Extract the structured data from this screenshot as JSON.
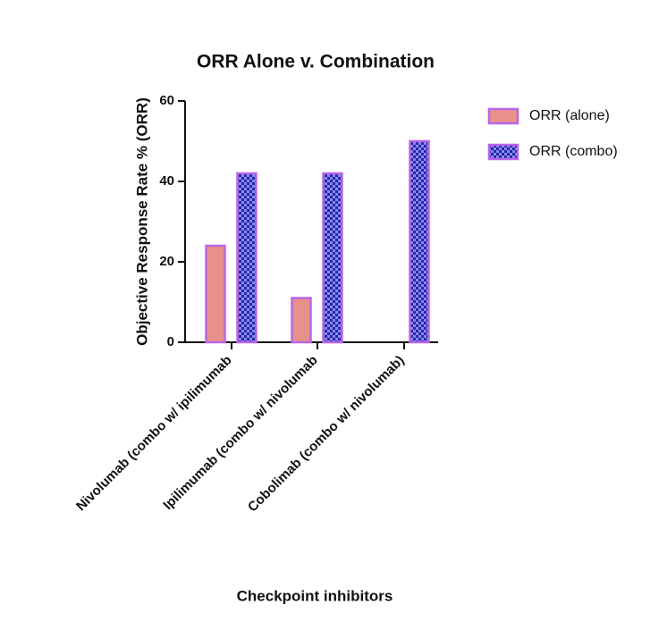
{
  "chart_data": {
    "type": "bar",
    "title": "ORR Alone v. Combination",
    "x_label": "Checkpoint inhibitors",
    "y_label": "Objective Response Rate % (ORR)",
    "categories": [
      "Nivolumab (combo w/ ipilimumab",
      "Ipilimumab (combo w/ nivolumab",
      "Cobolimab (combo w/ nivolumab)"
    ],
    "series": [
      {
        "name": "ORR (alone)",
        "color": "#e8908a",
        "values": [
          24,
          11,
          null
        ]
      },
      {
        "name": "ORR (combo)",
        "color": "#2626b0",
        "values": [
          42,
          42,
          50
        ]
      }
    ],
    "ylim": [
      0,
      60
    ],
    "yticks": [
      0,
      20,
      40,
      60
    ]
  }
}
